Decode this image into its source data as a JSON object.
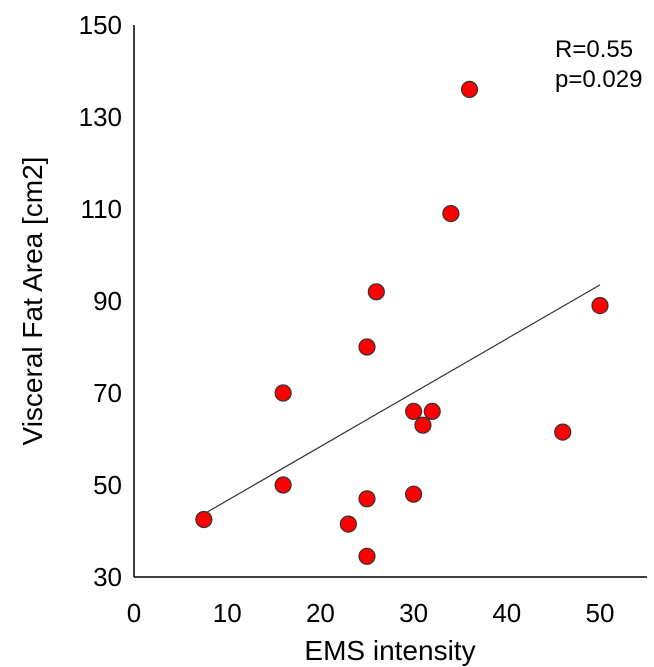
{
  "chart_data": {
    "type": "scatter",
    "xlabel": "EMS intensity",
    "ylabel": "Visceral Fat Area [cm2]",
    "xlim": [
      0,
      55
    ],
    "ylim": [
      30,
      150
    ],
    "xticks": [
      "0",
      "10",
      "20",
      "30",
      "40",
      "50"
    ],
    "yticks": [
      "30",
      "50",
      "70",
      "90",
      "110",
      "130",
      "150"
    ],
    "annotations": [
      "R=0.55",
      "p=0.029"
    ],
    "grid": false,
    "marker_color": "#ff0000",
    "marker_edge_color": "#333333",
    "trendline_color": "#333333",
    "points": [
      {
        "x": 7.5,
        "y": 42.5
      },
      {
        "x": 16,
        "y": 70
      },
      {
        "x": 16,
        "y": 50
      },
      {
        "x": 23,
        "y": 41.5
      },
      {
        "x": 25,
        "y": 80
      },
      {
        "x": 25,
        "y": 47
      },
      {
        "x": 25,
        "y": 34.5
      },
      {
        "x": 26,
        "y": 92
      },
      {
        "x": 30,
        "y": 66
      },
      {
        "x": 30,
        "y": 48
      },
      {
        "x": 31,
        "y": 63
      },
      {
        "x": 32,
        "y": 66
      },
      {
        "x": 34,
        "y": 109
      },
      {
        "x": 36,
        "y": 136
      },
      {
        "x": 46,
        "y": 61.5
      },
      {
        "x": 50,
        "y": 89
      }
    ],
    "trendline": {
      "x": [
        7.5,
        50
      ],
      "y": [
        43.7,
        93.5
      ]
    }
  }
}
